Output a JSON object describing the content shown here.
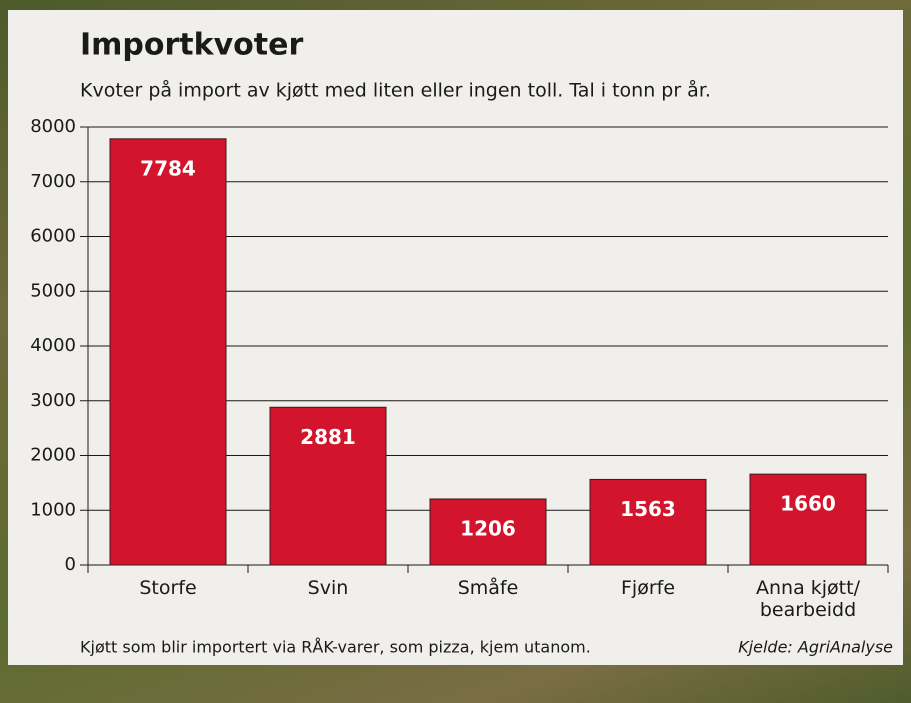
{
  "chart_data": {
    "type": "bar",
    "title": "Importkvoter",
    "subtitle": "Kvoter på import av kjøtt med liten eller ingen toll. Tal i tonn pr år.",
    "categories": [
      "Storfe",
      "Svin",
      "Småfe",
      "Fjørfe",
      "Anna kjøtt/ bearbeidd"
    ],
    "values": [
      7784,
      2881,
      1206,
      1563,
      1660
    ],
    "color": "#d2142d",
    "ylim": [
      0,
      8000
    ],
    "yticks": [
      0,
      1000,
      2000,
      3000,
      4000,
      5000,
      6000,
      7000,
      8000
    ],
    "grid": true,
    "note": "Kjøtt som blir importert via RÅK-varer, som pizza, kjem utanom.",
    "source": "Kjelde: AgriAnalyse"
  }
}
